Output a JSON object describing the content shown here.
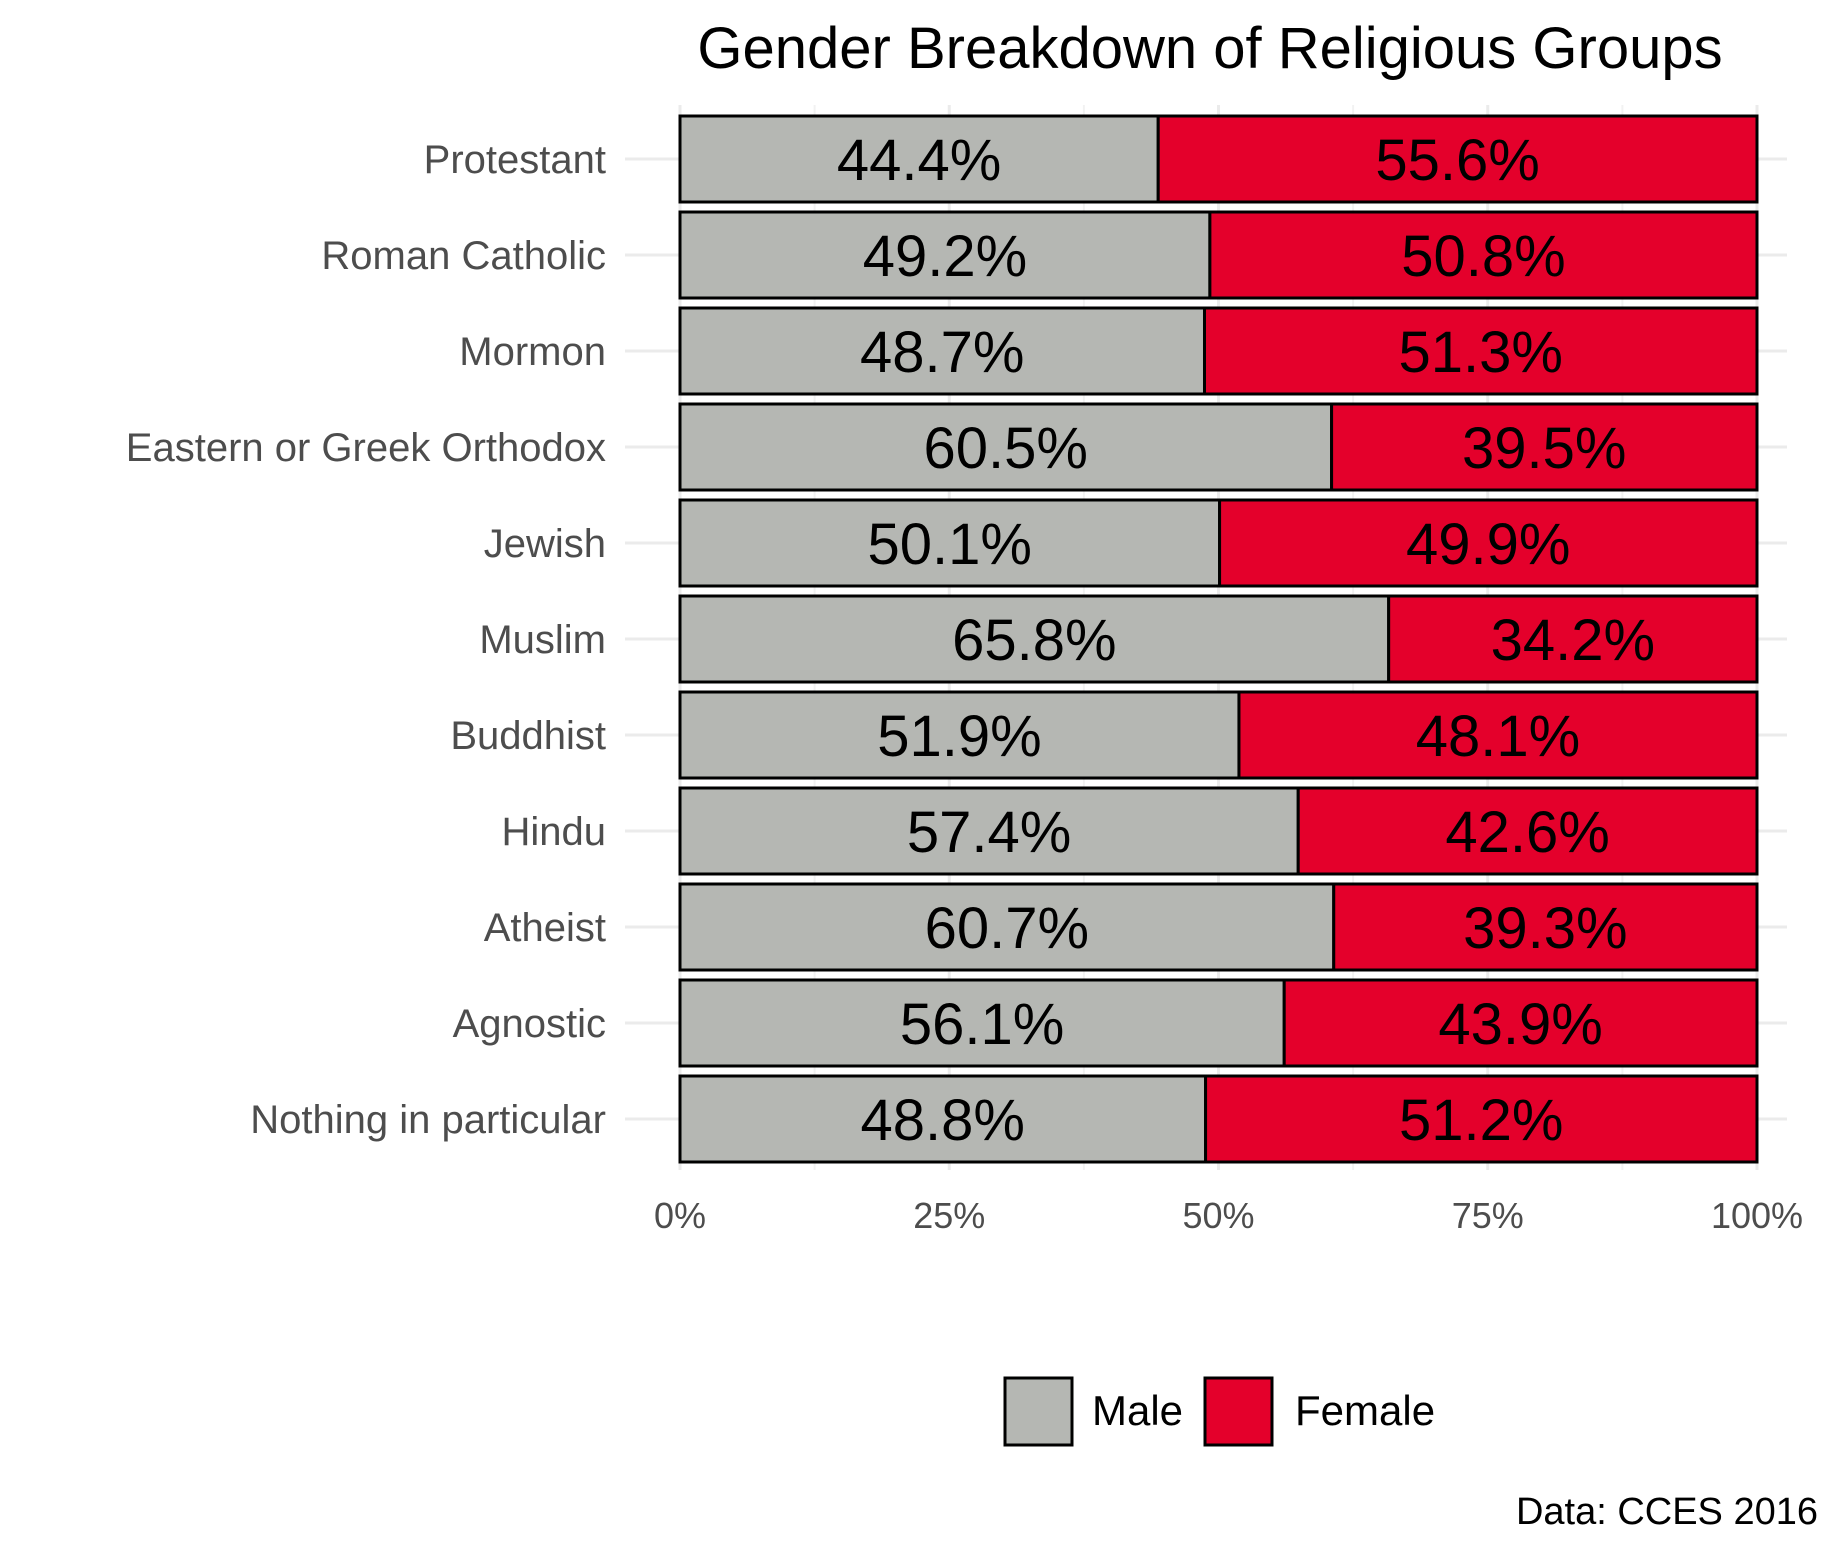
{
  "chart_data": {
    "type": "bar",
    "orientation": "horizontal",
    "stacked": "percent",
    "title": "Gender Breakdown of Religious Groups",
    "caption": "Data: CCES 2016",
    "categories": [
      "Protestant",
      "Roman Catholic",
      "Mormon",
      "Eastern or Greek Orthodox",
      "Jewish",
      "Muslim",
      "Buddhist",
      "Hindu",
      "Atheist",
      "Agnostic",
      "Nothing in particular"
    ],
    "series": [
      {
        "name": "Male",
        "color": "#b5b7b3",
        "values": [
          44.4,
          49.2,
          48.7,
          60.5,
          50.1,
          65.8,
          51.9,
          57.4,
          60.7,
          56.1,
          48.8
        ],
        "labels": [
          "44.4%",
          "49.2%",
          "48.7%",
          "60.5%",
          "50.1%",
          "65.8%",
          "51.9%",
          "57.4%",
          "60.7%",
          "56.1%",
          "48.8%"
        ]
      },
      {
        "name": "Female",
        "color": "#e4002b",
        "values": [
          55.6,
          50.8,
          51.3,
          39.5,
          49.9,
          34.2,
          48.1,
          42.6,
          39.3,
          43.9,
          51.2
        ],
        "labels": [
          "55.6%",
          "50.8%",
          "51.3%",
          "39.5%",
          "49.9%",
          "34.2%",
          "48.1%",
          "42.6%",
          "39.3%",
          "43.9%",
          "51.2%"
        ]
      }
    ],
    "x_ticks": [
      {
        "value": 0,
        "label": "0%"
      },
      {
        "value": 25,
        "label": "25%"
      },
      {
        "value": 50,
        "label": "50%"
      },
      {
        "value": 75,
        "label": "75%"
      },
      {
        "value": 100,
        "label": "100%"
      }
    ],
    "xlim": [
      0,
      100
    ],
    "xlabel": "",
    "ylabel": "",
    "grid": true,
    "legend_position": "bottom",
    "legend": [
      {
        "name": "Male",
        "color": "#b5b7b3"
      },
      {
        "name": "Female",
        "color": "#e4002b"
      }
    ]
  }
}
